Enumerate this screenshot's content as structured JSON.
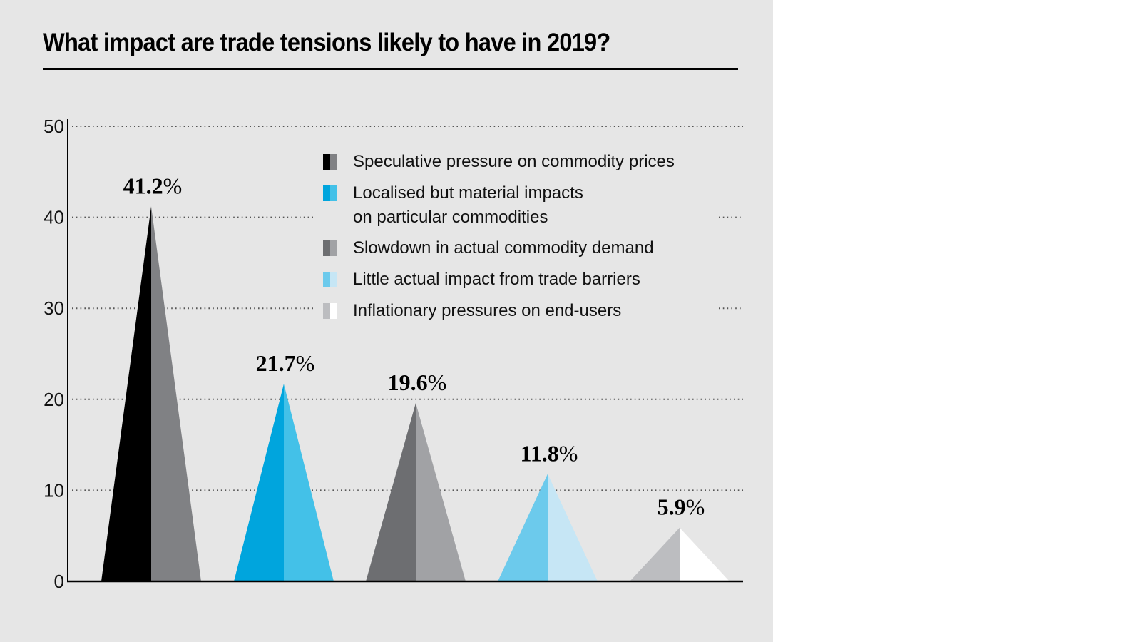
{
  "chart_data": {
    "type": "bar",
    "mark": "triangle",
    "title": "What impact are trade tensions likely to have in 2019?",
    "xlabel": "",
    "ylabel": "",
    "ylim": [
      0,
      50
    ],
    "yticks": [
      0,
      10,
      20,
      30,
      40,
      50
    ],
    "grid": true,
    "legend_position": "top-right",
    "categories": [
      "Speculative pressure on commodity prices",
      "Localised but material impacts on particular commodities",
      "Slowdown in actual commodity demand",
      "Little actual impact from trade barriers",
      "Inflationary pressures on end-users"
    ],
    "values": [
      41.2,
      21.7,
      19.6,
      11.8,
      5.9
    ],
    "value_labels": [
      {
        "number": "41.2",
        "unit": "%"
      },
      {
        "number": "21.7",
        "unit": "%"
      },
      {
        "number": "19.6",
        "unit": "%"
      },
      {
        "number": "11.8",
        "unit": "%"
      },
      {
        "number": "5.9",
        "unit": "%"
      }
    ],
    "colors": [
      {
        "left": "#000000",
        "right": "#808184"
      },
      {
        "left": "#00a5dd",
        "right": "#43c1e8"
      },
      {
        "left": "#6d6e71",
        "right": "#a1a2a5"
      },
      {
        "left": "#6ccaec",
        "right": "#c6e6f5"
      },
      {
        "left": "#bcbdc0",
        "right": "#ffffff"
      }
    ],
    "legend": [
      {
        "lines": [
          "Speculative pressure on commodity prices"
        ]
      },
      {
        "lines": [
          "Localised but material impacts",
          "on particular commodities"
        ]
      },
      {
        "lines": [
          "Slowdown in actual commodity demand"
        ]
      },
      {
        "lines": [
          "Little actual impact from trade barriers"
        ]
      },
      {
        "lines": [
          "Inflationary pressures on end-users"
        ]
      }
    ]
  },
  "style": {
    "panel_background": "#e6e6e6",
    "axis_color": "#000000",
    "grid_color": "#555555"
  }
}
